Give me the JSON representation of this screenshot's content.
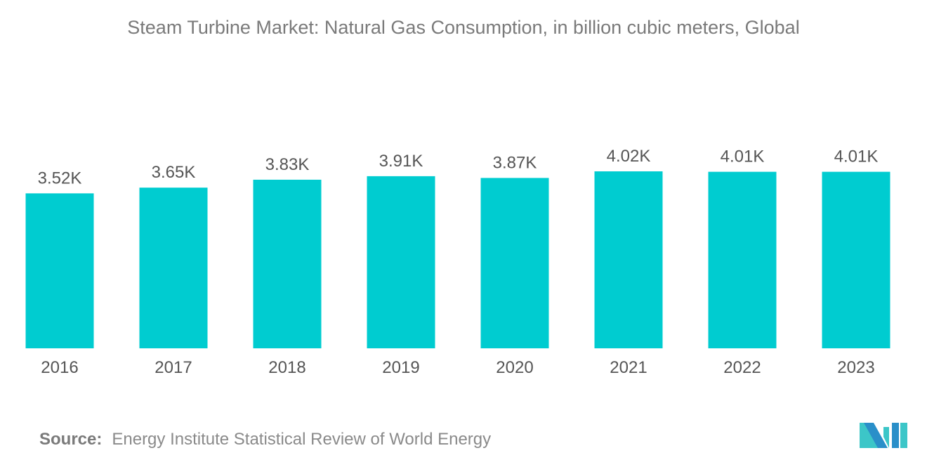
{
  "chart_data": {
    "type": "bar",
    "title": "Steam Turbine Market: Natural Gas Consumption, in billion cubic meters, Global",
    "categories": [
      "2016",
      "2017",
      "2018",
      "2019",
      "2020",
      "2021",
      "2022",
      "2023"
    ],
    "values": [
      3.52,
      3.65,
      3.83,
      3.91,
      3.87,
      4.02,
      4.01,
      4.01
    ],
    "data_labels": [
      "3.52K",
      "3.65K",
      "3.83K",
      "3.91K",
      "3.87K",
      "4.02K",
      "4.01K",
      "4.01K"
    ],
    "unit": "K",
    "ylim": [
      0,
      4.02
    ],
    "grid": false,
    "legend": "none",
    "bar_color": "#00ccd0"
  },
  "source": {
    "label": "Source:",
    "text": "Energy Institute Statistical Review of World Energy"
  },
  "logo": {
    "name": "mordor-intelligence-logo",
    "colors": [
      "#2a8fc9",
      "#3cc6c8"
    ]
  }
}
